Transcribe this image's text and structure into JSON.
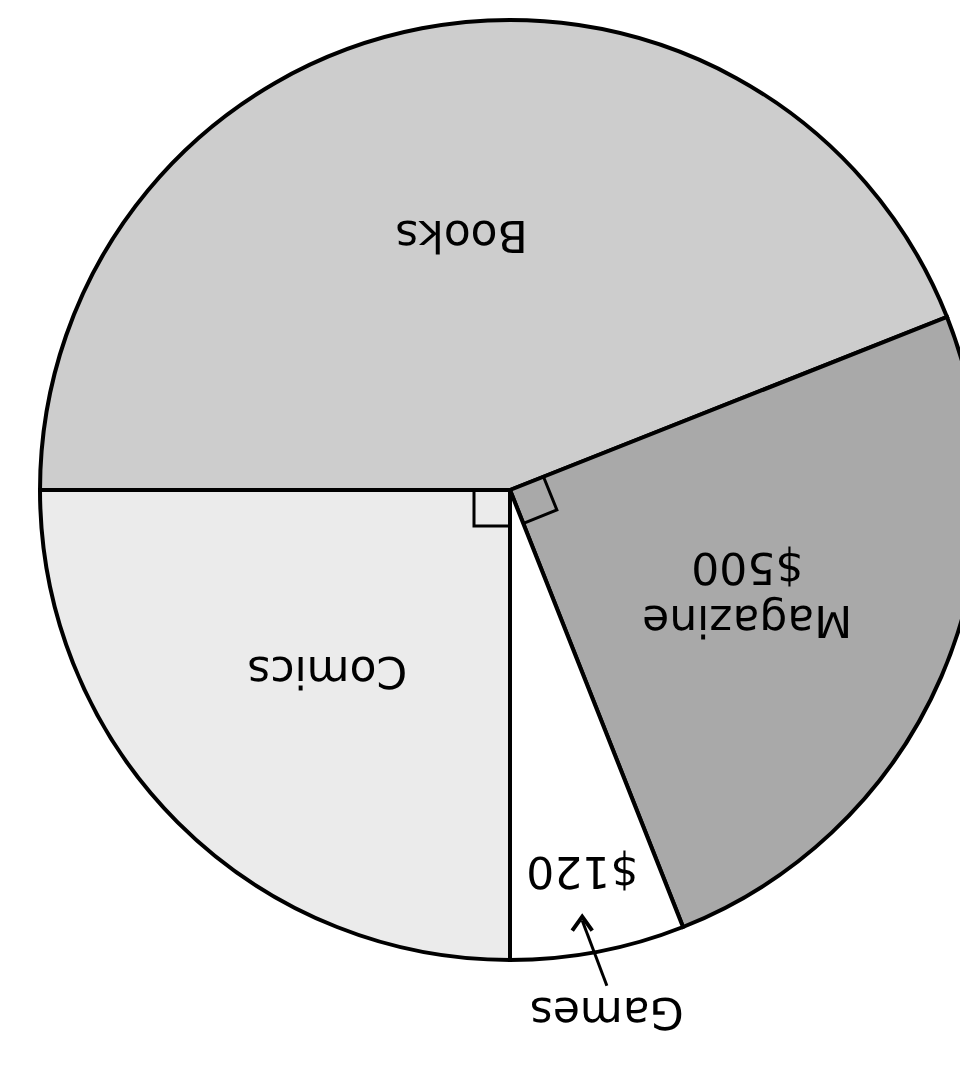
{
  "chart_data": {
    "type": "pie",
    "categories": [
      "Comics",
      "Books",
      "Magazine",
      "Games"
    ],
    "values": [
      500,
      880,
      500,
      120
    ],
    "colors": [
      "#ebebeb",
      "#cdcdcd",
      "#a9a9a9",
      "#ffffff"
    ],
    "value_labels": [
      null,
      null,
      "$500",
      "$120"
    ]
  }
}
